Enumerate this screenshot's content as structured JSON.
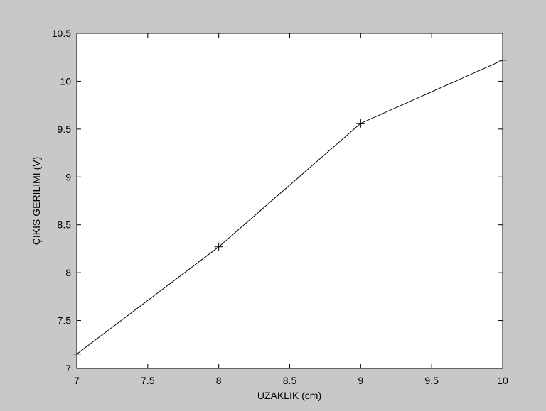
{
  "chart_data": {
    "type": "line",
    "title": "",
    "xlabel": "UZAKLIK (cm)",
    "ylabel": "ÇIKIS GERILIMI (V)",
    "xlim": [
      7,
      10
    ],
    "ylim": [
      7,
      10.5
    ],
    "xticks": [
      "7",
      "7.5",
      "8",
      "8.5",
      "9",
      "9.5",
      "10"
    ],
    "yticks": [
      "7",
      "7.5",
      "8",
      "8.5",
      "9",
      "9.5",
      "10",
      "10.5"
    ],
    "grid": false,
    "marker": "+",
    "colors": {
      "line": "#000000",
      "plot_background": "#ffffff",
      "figure_background": "#c8c8c8"
    },
    "series": [
      {
        "x": [
          7,
          8,
          9,
          10
        ],
        "y": [
          7.15,
          8.27,
          9.56,
          10.22
        ]
      }
    ]
  }
}
